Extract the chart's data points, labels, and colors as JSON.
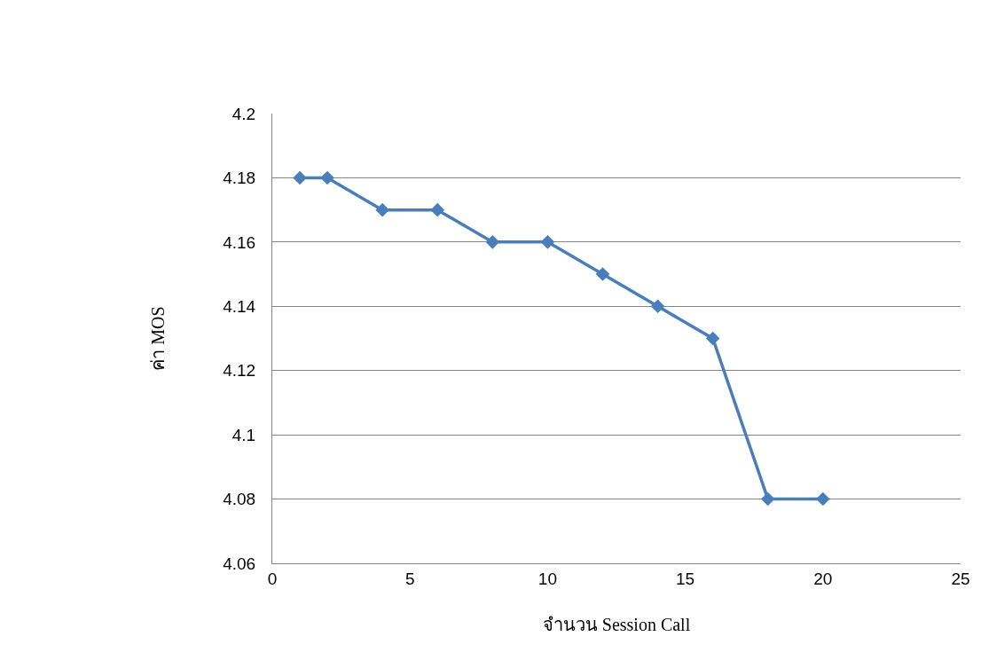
{
  "chart_data": {
    "type": "line",
    "xlabel": "จำนวน Session Call",
    "ylabel": "ค่า MOS",
    "x": [
      1,
      2,
      4,
      6,
      8,
      10,
      12,
      14,
      16,
      18,
      20
    ],
    "series": [
      {
        "color": "#4a7ebb",
        "values": [
          4.18,
          4.18,
          4.17,
          4.17,
          4.16,
          4.16,
          4.15,
          4.14,
          4.13,
          4.08,
          4.08
        ]
      }
    ],
    "xlim": [
      0,
      25
    ],
    "xticks": [
      0,
      5,
      10,
      15,
      20,
      25
    ],
    "ylim": [
      4.06,
      4.2
    ],
    "yticks": [
      {
        "value": 4.06,
        "label": "4.06"
      },
      {
        "value": 4.08,
        "label": "4.08"
      },
      {
        "value": 4.1,
        "label": "4.1"
      },
      {
        "value": 4.12,
        "label": "4.12"
      },
      {
        "value": 4.14,
        "label": "4.14"
      },
      {
        "value": 4.16,
        "label": "4.16"
      },
      {
        "value": 4.18,
        "label": "4.18"
      },
      {
        "value": 4.2,
        "label": "4.2"
      }
    ],
    "grid": "y",
    "legend": false,
    "marker": "diamond",
    "line_style": "solid"
  }
}
